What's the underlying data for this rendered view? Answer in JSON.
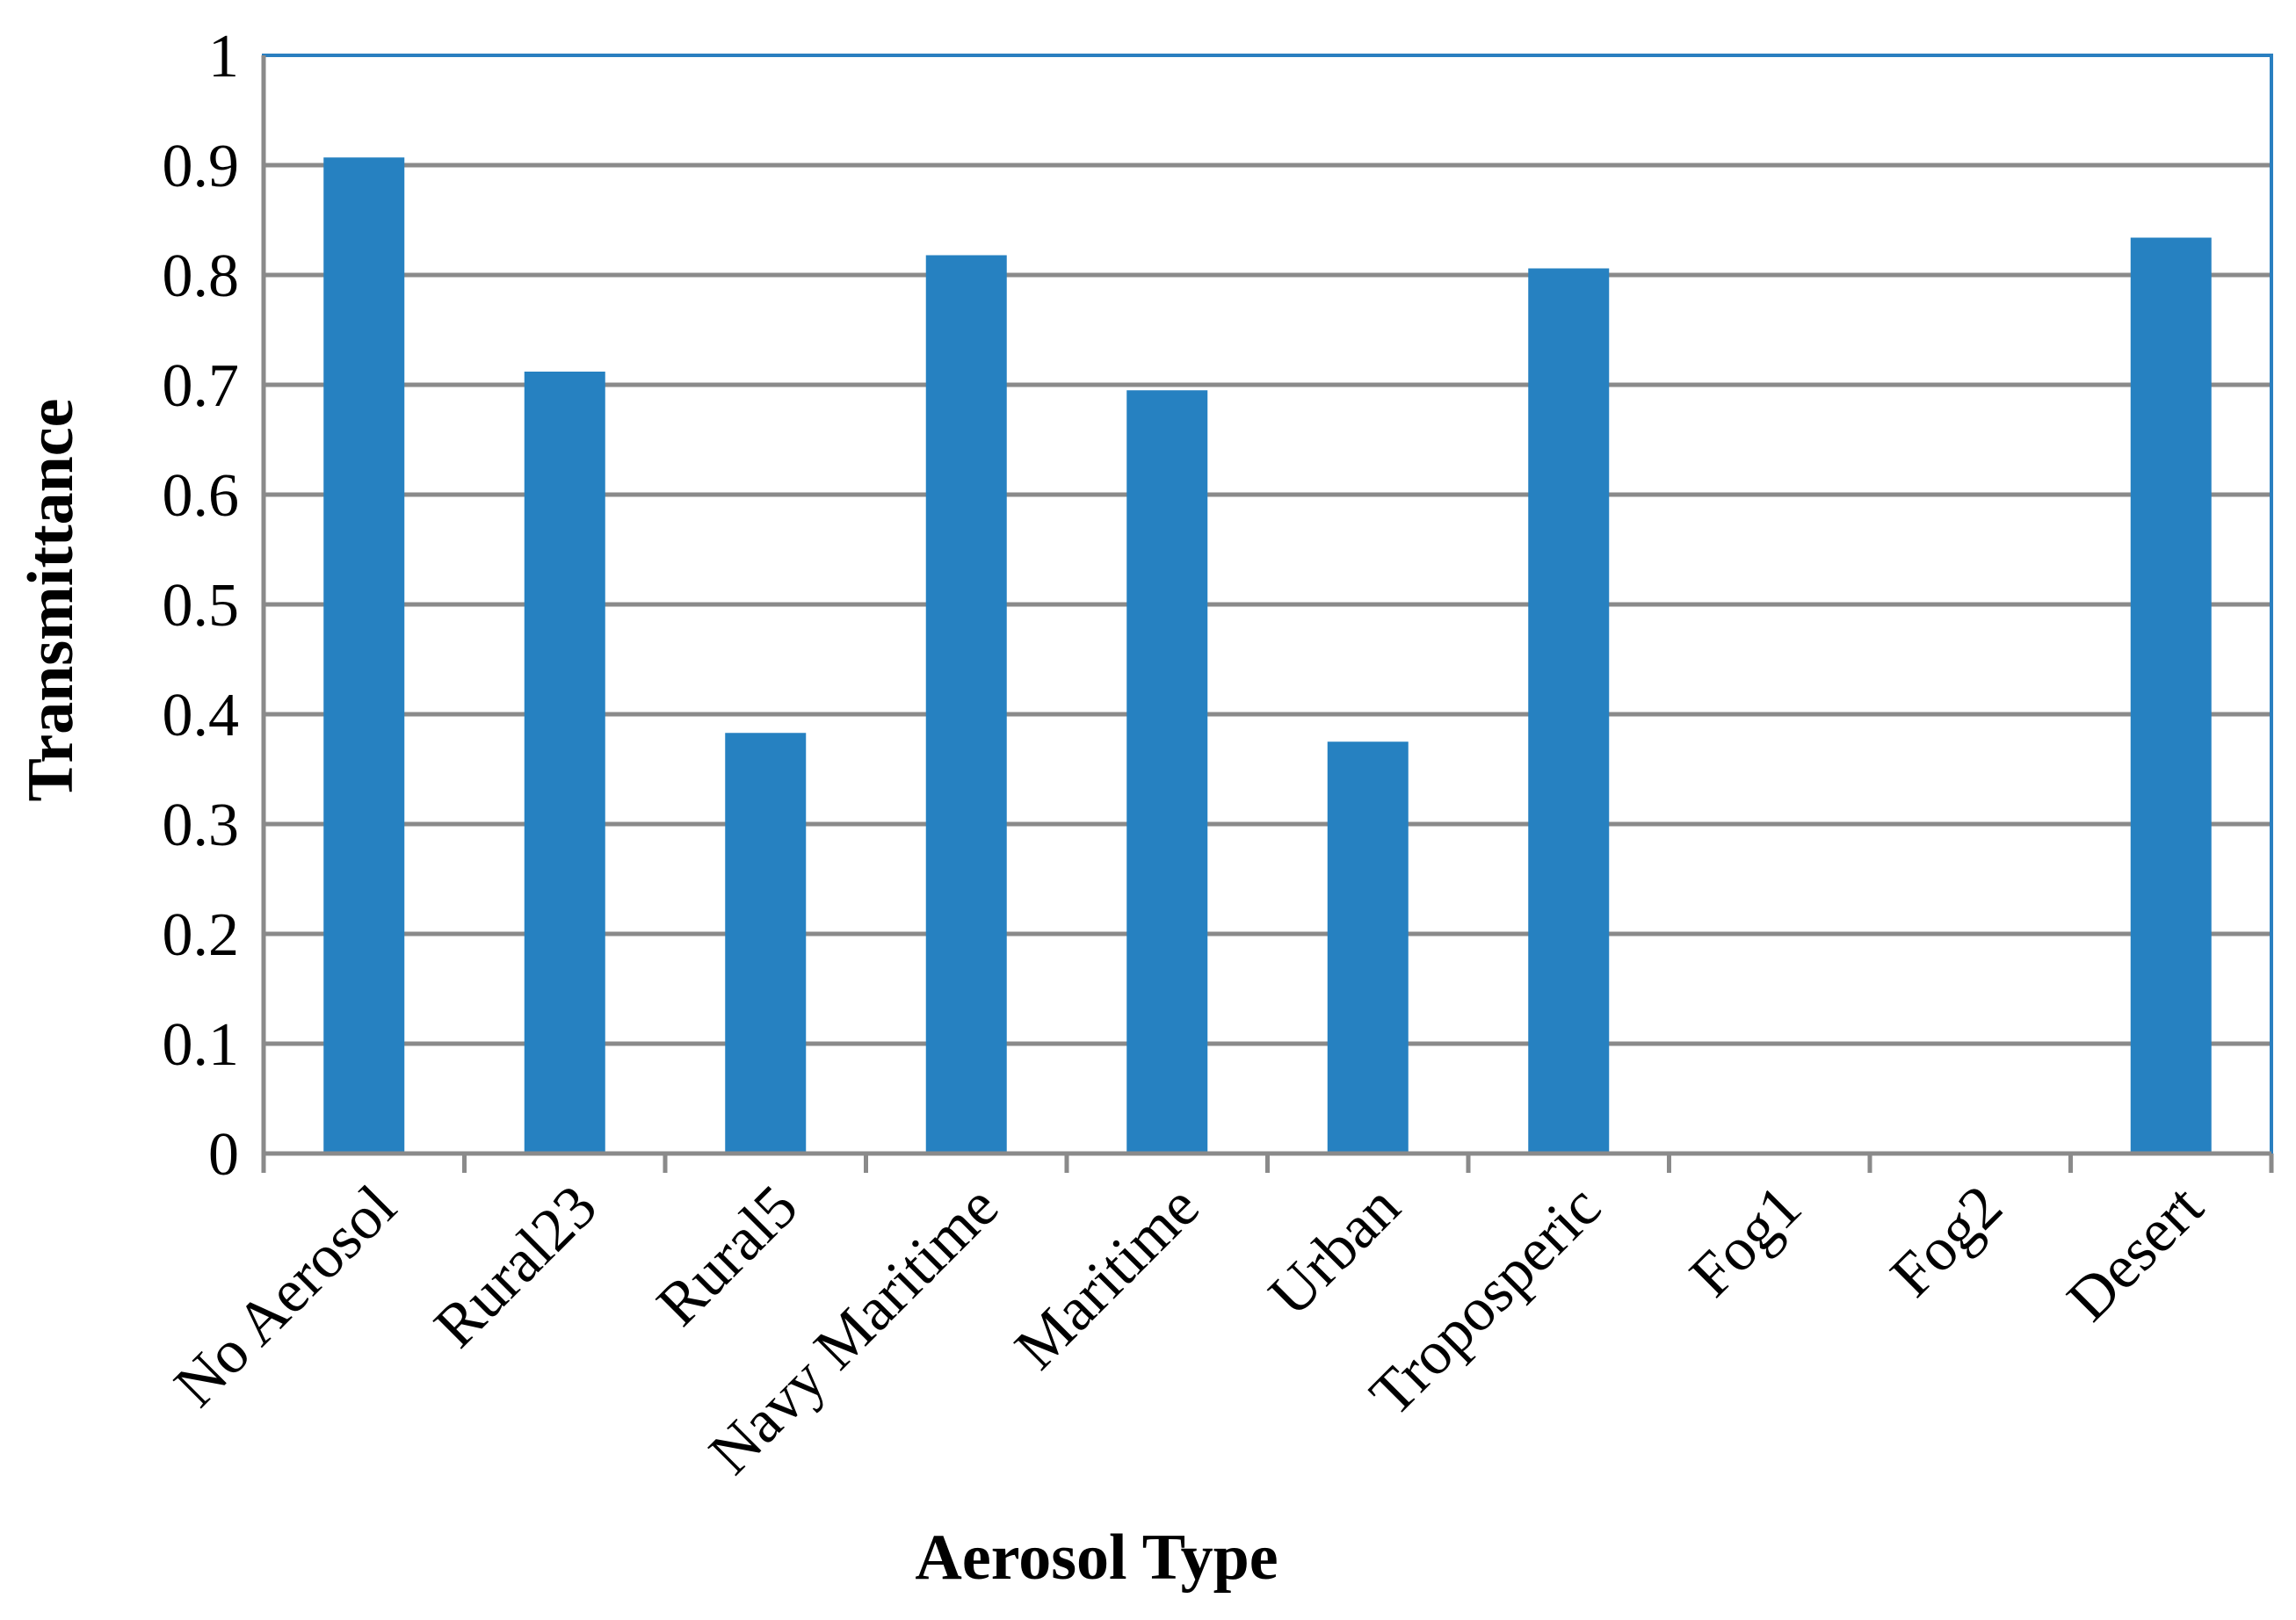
{
  "chart_data": {
    "type": "bar",
    "title": "",
    "xlabel": "Aerosol Type",
    "ylabel": "Transmittance",
    "categories": [
      "No Aerosol",
      "Rural23",
      "Rural5",
      "Navy Maritime",
      "Maritime",
      "Urban",
      "Troposperic",
      "Fog1",
      "Fog2",
      "Desert"
    ],
    "values": [
      0.907,
      0.712,
      0.383,
      0.818,
      0.695,
      0.375,
      0.806,
      0,
      0,
      0.834
    ],
    "ylim": [
      0,
      1
    ],
    "yticks": [
      "0",
      "0.1",
      "0.2",
      "0.3",
      "0.4",
      "0.5",
      "0.6",
      "0.7",
      "0.8",
      "0.9",
      "1"
    ],
    "grid": true,
    "legend": "none",
    "bar_color": "#2681c1"
  }
}
